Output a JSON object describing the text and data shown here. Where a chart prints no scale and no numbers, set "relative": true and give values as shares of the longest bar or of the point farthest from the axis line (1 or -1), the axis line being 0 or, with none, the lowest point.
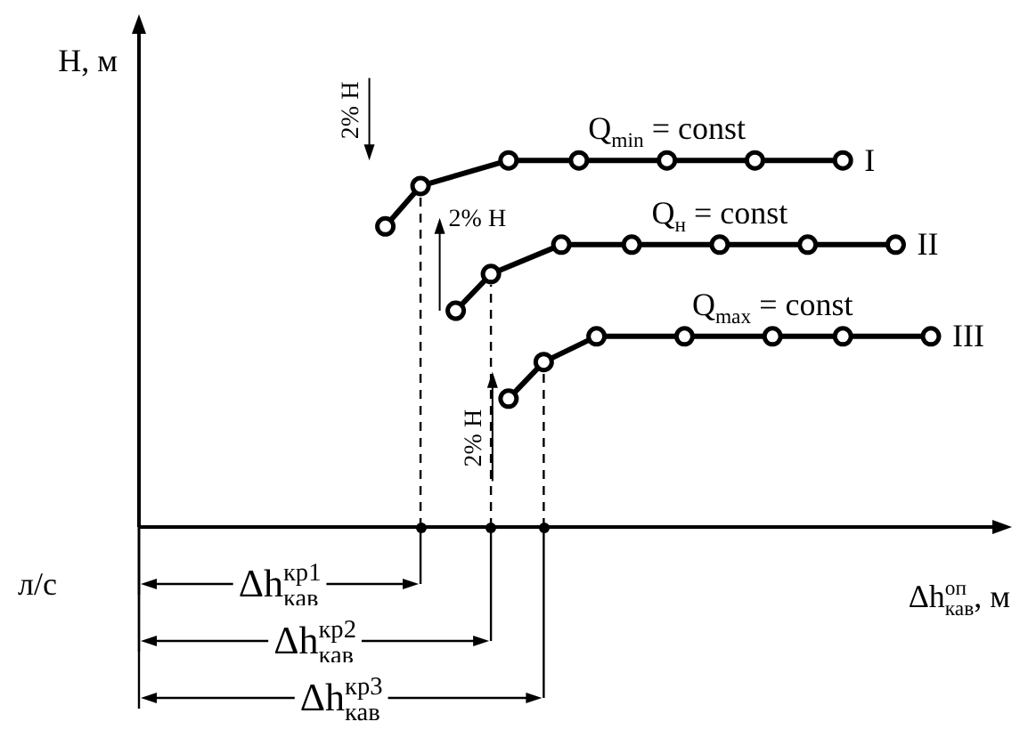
{
  "chart_data": {
    "type": "line",
    "relative": true,
    "tick_labels": false,
    "marker": "circle",
    "line_style": "solid",
    "ylabel": "H, м",
    "xlabel": "Δh$^{оп}$$_{кав}$, м",
    "categories": [
      null,
      null,
      null,
      null,
      null,
      null,
      null,
      null,
      null,
      null,
      null,
      null,
      null,
      null,
      null,
      null,
      null,
      null,
      null,
      null,
      null,
      null,
      null,
      null,
      null,
      null,
      null,
      null,
      null,
      null,
      null,
      null,
      null,
      null,
      null,
      null,
      null,
      null,
      null,
      null,
      null,
      null,
      null,
      null,
      null,
      null,
      null,
      null,
      null,
      null
    ],
    "series": [
      {
        "name": "I",
        "color": "#000000",
        "values": [
          null,
          null,
          null,
          null,
          null,
          null,
          null,
          null,
          null,
          null,
          null,
          null,
          null,
          null,
          0.82,
          null,
          0.93,
          null,
          null,
          null,
          null,
          1,
          null,
          null,
          null,
          1,
          null,
          null,
          null,
          null,
          1,
          null,
          null,
          null,
          null,
          1,
          null,
          null,
          null,
          null,
          1,
          null,
          null,
          null,
          null,
          null,
          null,
          null,
          null,
          null
        ]
      },
      {
        "name": "II",
        "color": "#000000",
        "values": [
          null,
          null,
          null,
          null,
          null,
          null,
          null,
          null,
          null,
          null,
          null,
          null,
          null,
          null,
          null,
          null,
          null,
          null,
          0.59,
          null,
          0.69,
          null,
          null,
          null,
          0.77,
          null,
          null,
          null,
          0.77,
          null,
          null,
          null,
          null,
          0.77,
          null,
          null,
          null,
          null,
          0.77,
          null,
          null,
          null,
          null,
          0.77,
          null,
          null,
          null,
          null,
          null,
          null
        ]
      },
      {
        "name": "III",
        "color": "#000000",
        "values": [
          null,
          null,
          null,
          null,
          null,
          null,
          null,
          null,
          null,
          null,
          null,
          null,
          null,
          null,
          null,
          null,
          null,
          null,
          null,
          null,
          null,
          0.35,
          null,
          0.45,
          null,
          null,
          0.52,
          null,
          null,
          null,
          null,
          0.52,
          null,
          null,
          null,
          null,
          0.52,
          null,
          null,
          null,
          0.52,
          null,
          null,
          null,
          null,
          0.52,
          null,
          null,
          null,
          null
        ]
      }
    ],
    "annotations": [
      "Q$_{min}$ = const",
      "Q$_{н}$ = const",
      "Q$_{max}$ = const",
      "2% H",
      "2% H",
      "2% H",
      "Δh$^{кр1}$$_{кав}$",
      "Δh$^{кр2}$$_{кав}$",
      "Δh$^{кр3}$$_{кав}$",
      "л/с"
    ]
  }
}
